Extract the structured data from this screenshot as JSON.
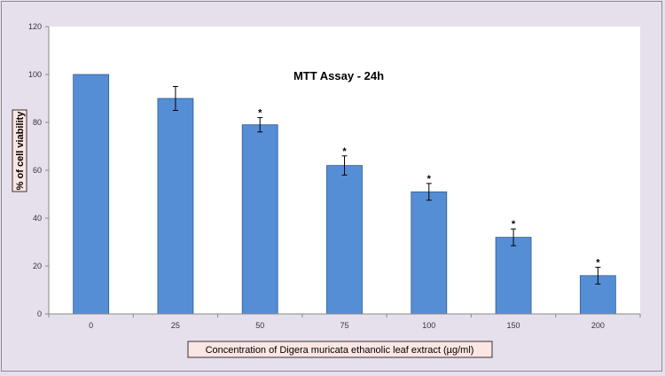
{
  "chart_data": {
    "type": "bar",
    "title": "MTT Assay - 24h",
    "xlabel": "Concentration of Digera muricata ethanolic  leaf extract (µg/ml)",
    "ylabel": "% of cell viability",
    "categories": [
      "0",
      "25",
      "50",
      "75",
      "100",
      "150",
      "200"
    ],
    "values": [
      100,
      90,
      79,
      62,
      51,
      32,
      16
    ],
    "errors": [
      0,
      5,
      3,
      4,
      3.5,
      3.5,
      3.5
    ],
    "significance": [
      "",
      "",
      "*",
      "*",
      "*",
      "*",
      "*"
    ],
    "ylim": [
      0,
      120
    ],
    "yticks": [
      "0",
      "20",
      "40",
      "60",
      "80",
      "100",
      "120"
    ],
    "grid": false,
    "bar_color": "#558ed5",
    "plot_background": "#ffffff",
    "page_background": "#e6e0ec",
    "axis_title_background": "#fbe6e3"
  }
}
